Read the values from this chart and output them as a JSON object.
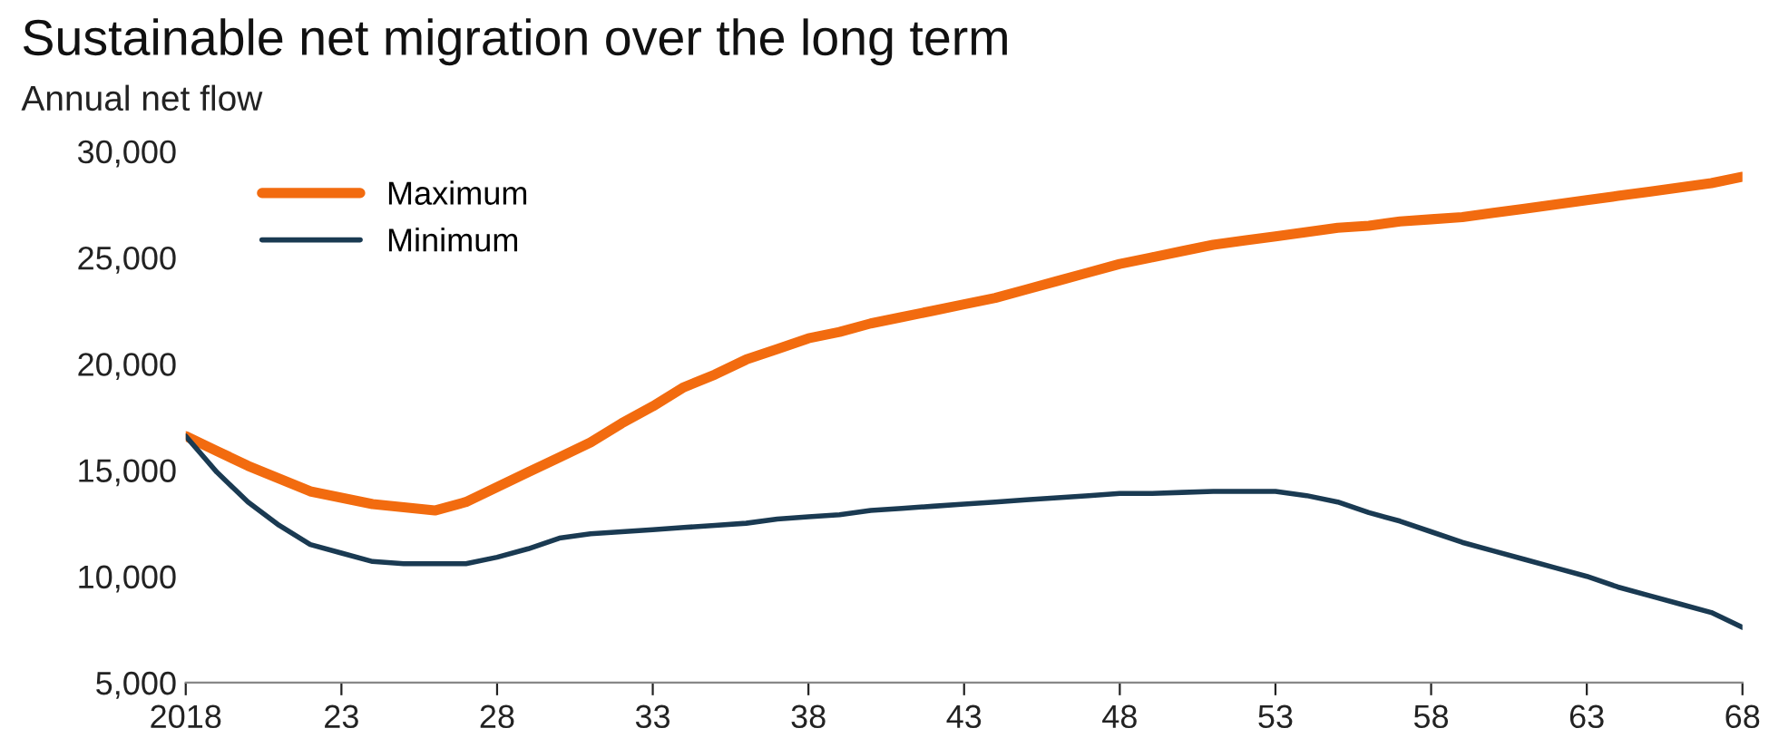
{
  "chart_data": {
    "type": "line",
    "title": "Sustainable net migration over the long term",
    "subtitle": "Annual net flow",
    "x": [
      2018,
      2019,
      2020,
      2021,
      2022,
      2023,
      2024,
      2025,
      2026,
      2027,
      2028,
      2029,
      2030,
      2031,
      2032,
      2033,
      2034,
      2035,
      2036,
      2037,
      2038,
      2039,
      2040,
      2041,
      2042,
      2043,
      2044,
      2045,
      2046,
      2047,
      2048,
      2049,
      2050,
      2051,
      2052,
      2053,
      2054,
      2055,
      2056,
      2057,
      2058,
      2059,
      2060,
      2061,
      2062,
      2063,
      2064,
      2065,
      2066,
      2067,
      2068
    ],
    "series": [
      {
        "name": "Maximum",
        "color": "#f26b0f",
        "values": [
          16600,
          15900,
          15200,
          14600,
          14000,
          13700,
          13400,
          13250,
          13100,
          13500,
          14200,
          14900,
          15600,
          16300,
          17200,
          18000,
          18900,
          19500,
          20200,
          20700,
          21200,
          21500,
          21900,
          22200,
          22500,
          22800,
          23100,
          23500,
          23900,
          24300,
          24700,
          25000,
          25300,
          25600,
          25800,
          26000,
          26200,
          26400,
          26500,
          26700,
          26800,
          26900,
          27100,
          27300,
          27500,
          27700,
          27900,
          28100,
          28300,
          28500,
          28800
        ]
      },
      {
        "name": "Minimum",
        "color": "#1a3a52",
        "values": [
          16600,
          14900,
          13500,
          12400,
          11500,
          11100,
          10700,
          10600,
          10600,
          10600,
          10900,
          11300,
          11800,
          12000,
          12100,
          12200,
          12300,
          12400,
          12500,
          12700,
          12800,
          12900,
          13100,
          13200,
          13300,
          13400,
          13500,
          13600,
          13700,
          13800,
          13900,
          13900,
          13950,
          14000,
          14000,
          14000,
          13800,
          13500,
          13000,
          12600,
          12100,
          11600,
          11200,
          10800,
          10400,
          10000,
          9500,
          9100,
          8700,
          8300,
          7600
        ]
      }
    ],
    "xlim": [
      2018,
      2068
    ],
    "xticks": [
      2018,
      {
        "value": 2023,
        "label": "23"
      },
      {
        "value": 2028,
        "label": "28"
      },
      {
        "value": 2033,
        "label": "33"
      },
      {
        "value": 2038,
        "label": "38"
      },
      {
        "value": 2043,
        "label": "43"
      },
      {
        "value": 2048,
        "label": "48"
      },
      {
        "value": 2053,
        "label": "53"
      },
      {
        "value": 2058,
        "label": "58"
      },
      {
        "value": 2063,
        "label": "63"
      },
      {
        "value": 2068,
        "label": "68"
      }
    ],
    "ylim": [
      5000,
      30000
    ],
    "yticks": [
      {
        "value": 5000,
        "label": "5,000"
      },
      {
        "value": 10000,
        "label": "10,000"
      },
      {
        "value": 15000,
        "label": "15,000"
      },
      {
        "value": 20000,
        "label": "20,000"
      },
      {
        "value": 25000,
        "label": "25,000"
      },
      {
        "value": 30000,
        "label": "30,000"
      }
    ],
    "grid": false,
    "legend": "top left",
    "marker": "none",
    "line_style": "solid"
  }
}
